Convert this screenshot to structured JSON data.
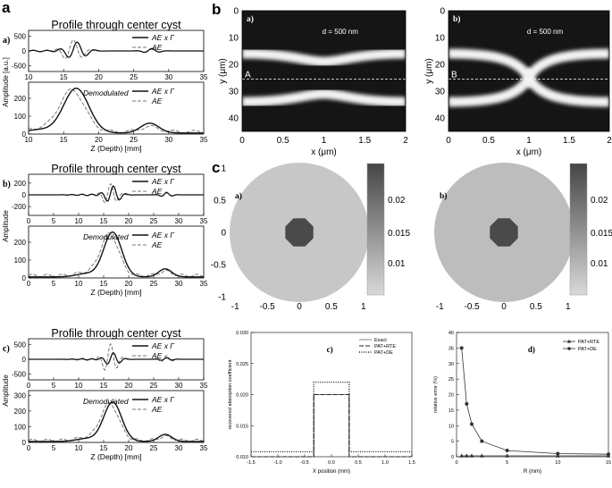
{
  "panel_letters": {
    "a": "a",
    "b": "b",
    "c": "c"
  },
  "colors": {
    "line_solid": "#111111",
    "line_dashed": "#777777",
    "band": "#f2f2f2",
    "dark_bg": "#151515"
  },
  "panel_a": {
    "rows": [
      {
        "tag": "a)",
        "title": "Profile through center cyst",
        "xlabel": "Z (Depth) [mm]",
        "ylabel": "Amplitude [a.u.]",
        "xticks": [
          "10",
          "15",
          "20",
          "25",
          "30",
          "35"
        ],
        "raw_yticks": [
          "500",
          "0",
          "-500"
        ],
        "dem_yticks": [
          "200",
          "100",
          "0"
        ],
        "legend_raw": [
          "AE x Γ",
          "AE"
        ],
        "legend_dem": [
          "AE x Γ",
          "AE"
        ],
        "dem_note": "Demodulated"
      },
      {
        "tag": "b)",
        "title": "Profile through center cyst",
        "xlabel": "Z (Depth) [mm]",
        "ylabel": "Amplitude",
        "xticks": [
          "0",
          "5",
          "10",
          "15",
          "20",
          "25",
          "30",
          "35"
        ],
        "raw_yticks": [
          "200",
          "0",
          "-200"
        ],
        "dem_yticks": [
          "200",
          "100",
          "0"
        ],
        "legend_raw": [
          "AE x Γ",
          "AE"
        ],
        "legend_dem": [
          "AE x Γ",
          "AE"
        ],
        "dem_note": "Demodulated"
      },
      {
        "tag": "c)",
        "title": "Profile through center cyst",
        "xlabel": "Z (Depth) [mm]",
        "ylabel": "Amplitude",
        "xticks": [
          "0",
          "5",
          "10",
          "15",
          "20",
          "25",
          "30",
          "35"
        ],
        "raw_yticks": [
          "500",
          "0",
          "-500"
        ],
        "dem_yticks": [
          "300",
          "200",
          "100",
          "0"
        ],
        "legend_raw": [
          "AE x Γ",
          "AE"
        ],
        "legend_dem": [
          "AE x Γ",
          "AE"
        ],
        "dem_note": "Demodulated"
      }
    ]
  },
  "panel_b": {
    "images": [
      {
        "tag": "a)",
        "line_label": "A",
        "annotation": "d = 500 nm"
      },
      {
        "tag": "b)",
        "line_label": "B",
        "annotation": "d = 500 nm"
      }
    ],
    "ylabel": "y (μm)",
    "xlabel": "x (μm)",
    "yticks": [
      "0",
      "10",
      "20",
      "30",
      "40"
    ],
    "xticks": [
      "0",
      "0.5",
      "1",
      "1.5",
      "2"
    ]
  },
  "panel_c_maps": {
    "maps": [
      {
        "tag": "a)"
      },
      {
        "tag": "b)"
      }
    ],
    "yticks": [
      "1",
      "0.5",
      "0",
      "-0.5",
      "-1"
    ],
    "xticks": [
      "-1",
      "-0.5",
      "0",
      "0.5",
      "1"
    ],
    "colorbar_ticks": [
      "0.02",
      "0.015",
      "0.01"
    ]
  },
  "chart_data": [
    {
      "type": "line",
      "tag": "c)",
      "xlabel": "X position (mm)",
      "ylabel": "recovered absorption coefficient",
      "xlim": [
        -1.5,
        1.5
      ],
      "ylim": [
        0.01,
        0.03
      ],
      "xticks": [
        "-1.5",
        "-1.0",
        "-0.5",
        "0.0",
        "0.5",
        "1.0",
        "1.5"
      ],
      "yticks": [
        "0.030",
        "0.025",
        "0.020",
        "0.015",
        "0.010"
      ],
      "legend": "top-right",
      "series": [
        {
          "name": "Exact",
          "x": [
            -1.5,
            -0.33,
            -0.33,
            0.33,
            0.33,
            1.5
          ],
          "y": [
            0.01,
            0.01,
            0.02,
            0.02,
            0.01,
            0.01
          ]
        },
        {
          "name": "PAT+RTE",
          "x": [
            -1.5,
            -0.33,
            -0.33,
            0.33,
            0.33,
            1.5
          ],
          "y": [
            0.01,
            0.01,
            0.02,
            0.02,
            0.01,
            0.01
          ]
        },
        {
          "name": "PAT+DE",
          "x": [
            -1.5,
            -0.33,
            -0.33,
            0.33,
            0.33,
            1.5
          ],
          "y": [
            0.0108,
            0.0108,
            0.022,
            0.022,
            0.0108,
            0.0108
          ]
        }
      ]
    },
    {
      "type": "line",
      "tag": "d)",
      "xlabel": "R (mm)",
      "ylabel": "relative error (%)",
      "xlim": [
        0,
        15
      ],
      "ylim": [
        0,
        40
      ],
      "xticks": [
        "0",
        "5",
        "10",
        "15"
      ],
      "yticks": [
        "40",
        "35",
        "30",
        "25",
        "20",
        "15",
        "10",
        "5",
        "0"
      ],
      "legend": "top-right",
      "series": [
        {
          "name": "PAT+RTE",
          "x": [
            0.5,
            1,
            1.5,
            2.5,
            5,
            10,
            15
          ],
          "y": [
            0.3,
            0.3,
            0.3,
            0.3,
            0.3,
            0.3,
            0.3
          ]
        },
        {
          "name": "PAT+DE",
          "x": [
            0.5,
            1,
            1.5,
            2.5,
            5,
            10,
            15
          ],
          "y": [
            35,
            17,
            10.5,
            5,
            2,
            1,
            0.8
          ]
        }
      ]
    }
  ]
}
